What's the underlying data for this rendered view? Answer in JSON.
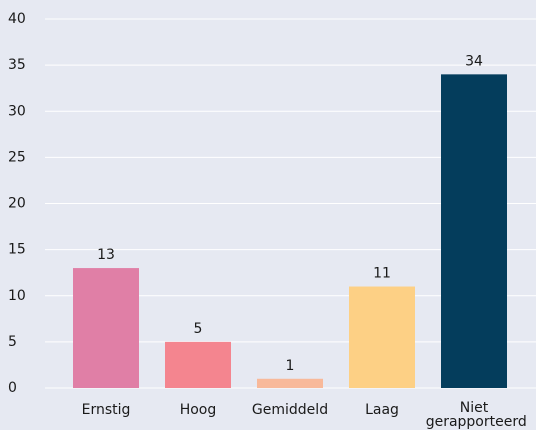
{
  "chart_data": {
    "type": "bar",
    "categories": [
      "Ernstig",
      "Hoog",
      "Gemiddeld",
      "Laag",
      "Niet gerapporteerd"
    ],
    "values": [
      13,
      5,
      1,
      11,
      34
    ],
    "colors": [
      "#e07fa6",
      "#f4858f",
      "#f8b99a",
      "#fdd085",
      "#043d5c"
    ],
    "ylim": [
      0,
      40
    ],
    "yticks": [
      0,
      5,
      10,
      15,
      20,
      25,
      30,
      35,
      40
    ],
    "grid": true
  }
}
